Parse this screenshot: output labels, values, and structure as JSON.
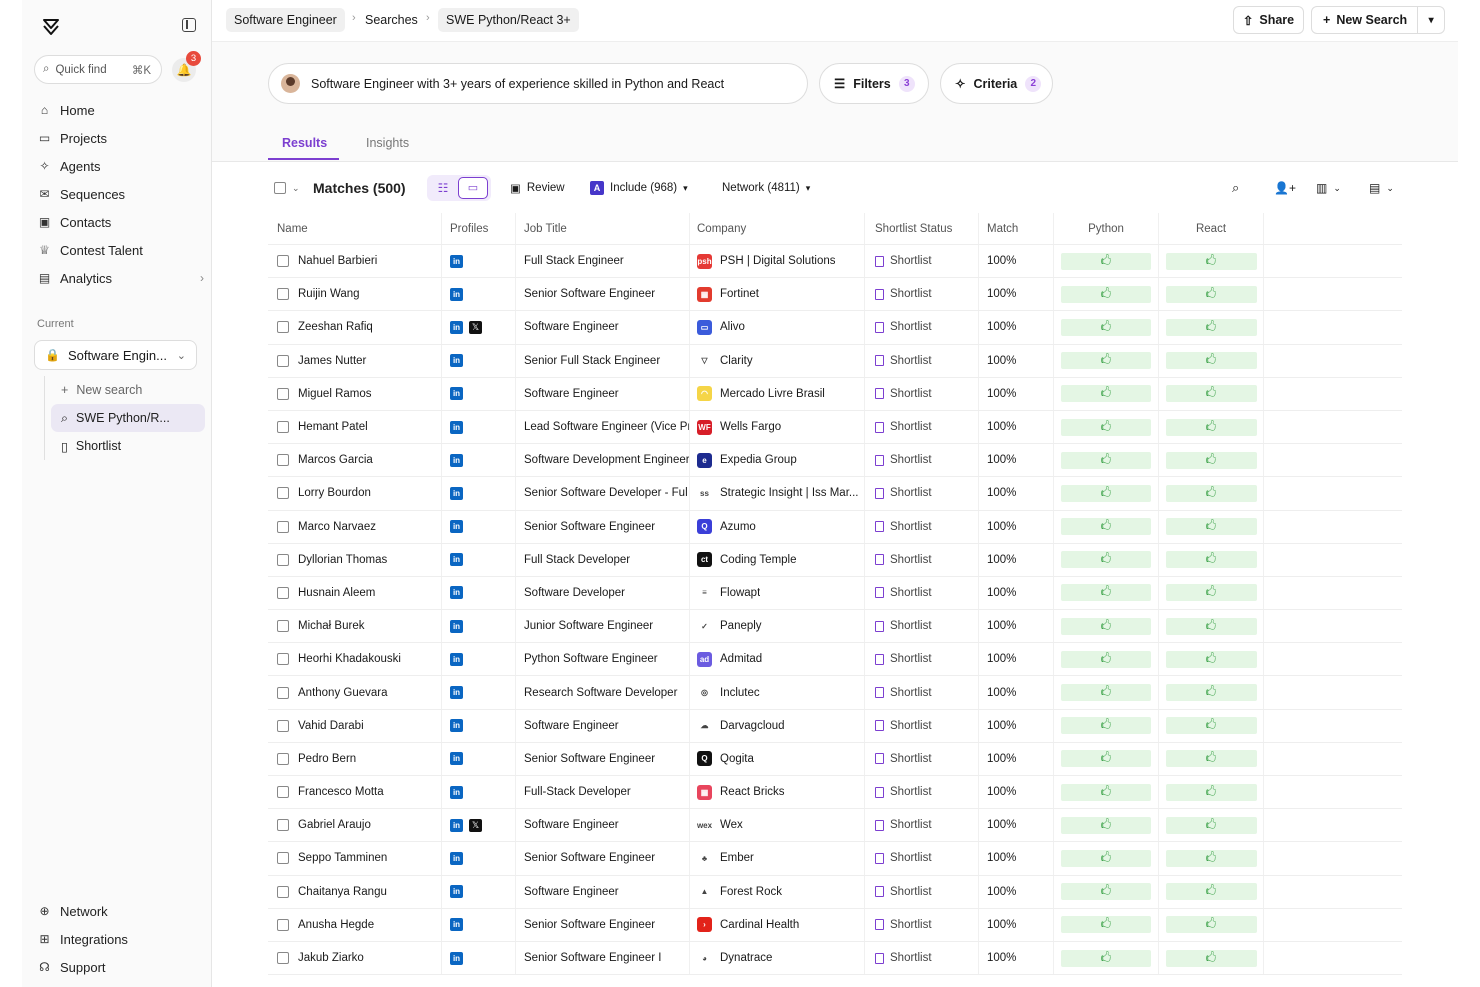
{
  "sidebar": {
    "quick_find": "Quick find",
    "quick_find_kbd": "⌘K",
    "notification_count": "3",
    "nav": [
      {
        "label": "Home",
        "icon": "home-icon"
      },
      {
        "label": "Projects",
        "icon": "folder-icon"
      },
      {
        "label": "Agents",
        "icon": "sparkle-icon"
      },
      {
        "label": "Sequences",
        "icon": "mail-stack-icon"
      },
      {
        "label": "Contacts",
        "icon": "contact-card-icon"
      },
      {
        "label": "Contest Talent",
        "icon": "trophy-icon"
      },
      {
        "label": "Analytics",
        "icon": "bar-chart-icon"
      }
    ],
    "current_label": "Current",
    "current_project": "Software Engin...",
    "sub": [
      {
        "label": "New search"
      },
      {
        "label": "SWE Python/R..."
      },
      {
        "label": "Shortlist"
      }
    ],
    "bottom": [
      {
        "label": "Network"
      },
      {
        "label": "Integrations"
      },
      {
        "label": "Support"
      }
    ]
  },
  "topbar": {
    "breadcrumbs": [
      "Software Engineer",
      "Searches",
      "SWE Python/React 3+"
    ],
    "share": "Share",
    "new_search": "New Search"
  },
  "query": {
    "text": "Software Engineer with 3+ years of experience skilled in Python and React",
    "filters_label": "Filters",
    "filters_count": "3",
    "criteria_label": "Criteria",
    "criteria_count": "2"
  },
  "tabs": [
    "Results",
    "Insights"
  ],
  "toolbar": {
    "matches": "Matches (500)",
    "review": "Review",
    "include": "Include (968)",
    "network": "Network (4811)"
  },
  "table": {
    "headers": [
      "Name",
      "Profiles",
      "Job Title",
      "Company",
      "Shortlist Status",
      "Match",
      "Python",
      "React"
    ],
    "rows": [
      {
        "name": "Nahuel Barbieri",
        "x": false,
        "job": "Full Stack Engineer",
        "company": "PSH | Digital Solutions",
        "logo_color": "#e53935",
        "logo_text": "psh",
        "status": "Shortlist",
        "match": "100%"
      },
      {
        "name": "Ruijin Wang",
        "x": false,
        "job": "Senior Software Engineer",
        "company": "Fortinet",
        "logo_color": "#e23b2e",
        "logo_text": "▦",
        "status": "Shortlist",
        "match": "100%"
      },
      {
        "name": "Zeeshan Rafiq",
        "x": true,
        "job": "Software Engineer",
        "company": "Alivo",
        "logo_color": "#3b5bdb",
        "logo_text": "▭",
        "status": "Shortlist",
        "match": "100%"
      },
      {
        "name": "James Nutter",
        "x": false,
        "job": "Senior Full Stack Engineer",
        "company": "Clarity",
        "logo_color": "#ffffff",
        "logo_text": "▽",
        "status": "Shortlist",
        "match": "100%"
      },
      {
        "name": "Miguel Ramos",
        "x": false,
        "job": "Software Engineer",
        "company": "Mercado Livre Brasil",
        "logo_color": "#f5d547",
        "logo_text": "◠",
        "status": "Shortlist",
        "match": "100%"
      },
      {
        "name": "Hemant Patel",
        "x": false,
        "job": "Lead Software Engineer (Vice Pr",
        "company": "Wells Fargo",
        "logo_color": "#d71e28",
        "logo_text": "WF",
        "status": "Shortlist",
        "match": "100%"
      },
      {
        "name": "Marcos Garcia",
        "x": false,
        "job": "Software Development Engineer",
        "company": "Expedia Group",
        "logo_color": "#1d2b8f",
        "logo_text": "e",
        "status": "Shortlist",
        "match": "100%"
      },
      {
        "name": "Lorry Bourdon",
        "x": false,
        "job": "Senior Software Developer - Ful",
        "company": "Strategic Insight | Iss Mar...",
        "logo_color": "#ffffff",
        "logo_text": "ss",
        "status": "Shortlist",
        "match": "100%"
      },
      {
        "name": "Marco Narvaez",
        "x": false,
        "job": "Senior Software Engineer",
        "company": "Azumo",
        "logo_color": "#3b3fd8",
        "logo_text": "Q",
        "status": "Shortlist",
        "match": "100%"
      },
      {
        "name": "Dyllorian Thomas",
        "x": false,
        "job": "Full Stack Developer",
        "company": "Coding Temple",
        "logo_color": "#111111",
        "logo_text": "ct",
        "status": "Shortlist",
        "match": "100%"
      },
      {
        "name": "Husnain Aleem",
        "x": false,
        "job": "Software Developer",
        "company": "Flowapt",
        "logo_color": "#ffffff",
        "logo_text": "≡",
        "status": "Shortlist",
        "match": "100%"
      },
      {
        "name": "Michał Burek",
        "x": false,
        "job": "Junior Software Engineer",
        "company": "Paneply",
        "logo_color": "#ffffff",
        "logo_text": "✓",
        "status": "Shortlist",
        "match": "100%"
      },
      {
        "name": "Heorhi Khadakouski",
        "x": false,
        "job": "Python Software Engineer",
        "company": "Admitad",
        "logo_color": "#6b5be0",
        "logo_text": "ad",
        "status": "Shortlist",
        "match": "100%"
      },
      {
        "name": "Anthony Guevara",
        "x": false,
        "job": "Research Software Developer",
        "company": "Inclutec",
        "logo_color": "#ffffff",
        "logo_text": "◎",
        "status": "Shortlist",
        "match": "100%"
      },
      {
        "name": "Vahid Darabi",
        "x": false,
        "job": "Software Engineer",
        "company": "Darvagcloud",
        "logo_color": "#ffffff",
        "logo_text": "☁",
        "status": "Shortlist",
        "match": "100%"
      },
      {
        "name": "Pedro Bern",
        "x": false,
        "job": "Senior Software Engineer",
        "company": "Qogita",
        "logo_color": "#111111",
        "logo_text": "Q",
        "status": "Shortlist",
        "match": "100%"
      },
      {
        "name": "Francesco Motta",
        "x": false,
        "job": "Full-Stack Developer",
        "company": "React Bricks",
        "logo_color": "#e8455d",
        "logo_text": "▦",
        "status": "Shortlist",
        "match": "100%"
      },
      {
        "name": "Gabriel Araujo",
        "x": true,
        "job": "Software Engineer",
        "company": "Wex",
        "logo_color": "#ffffff",
        "logo_text": "wex",
        "status": "Shortlist",
        "match": "100%"
      },
      {
        "name": "Seppo Tamminen",
        "x": false,
        "job": "Senior Software Engineer",
        "company": "Ember",
        "logo_color": "#ffffff",
        "logo_text": "♣",
        "status": "Shortlist",
        "match": "100%"
      },
      {
        "name": "Chaitanya Rangu",
        "x": false,
        "job": "Software Engineer",
        "company": "Forest Rock",
        "logo_color": "#ffffff",
        "logo_text": "▲",
        "status": "Shortlist",
        "match": "100%"
      },
      {
        "name": "Anusha Hegde",
        "x": false,
        "job": "Senior Software Engineer",
        "company": "Cardinal Health",
        "logo_color": "#e2231a",
        "logo_text": "›",
        "status": "Shortlist",
        "match": "100%"
      },
      {
        "name": "Jakub Ziarko",
        "x": false,
        "job": "Senior Software Engineer I",
        "company": "Dynatrace",
        "logo_color": "#ffffff",
        "logo_text": "◕",
        "status": "Shortlist",
        "match": "100%"
      }
    ]
  },
  "colors": {
    "accent": "#7c3fd0",
    "match_bg": "#e4f6e4",
    "match_fg": "#2e9b3c",
    "linkedin": "#0a66c2",
    "badge_red": "#e84a3c"
  }
}
